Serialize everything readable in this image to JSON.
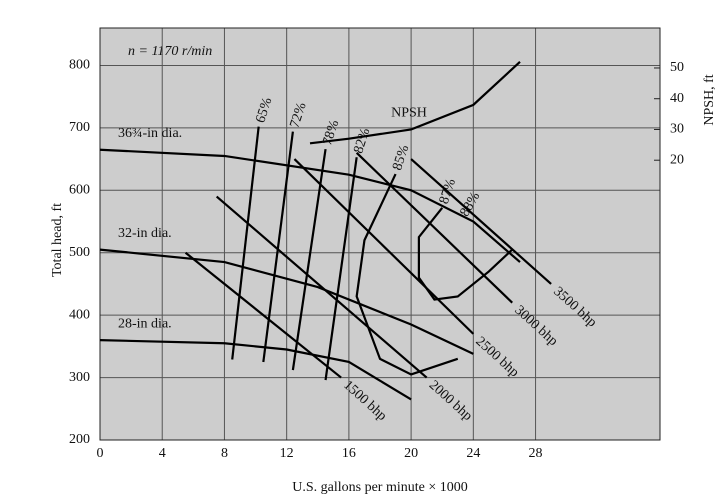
{
  "chart_data": {
    "type": "line",
    "annotation": "n = 1170 r/min",
    "xlabel": "U.S. gallons per minute × 1000",
    "ylabel": "Total head, ft",
    "y2label": "NPSH, ft",
    "xlim": [
      0,
      36
    ],
    "xticks": [
      0,
      4,
      8,
      12,
      16,
      20,
      24,
      28
    ],
    "ylim": [
      200,
      860
    ],
    "yticks": [
      200,
      300,
      400,
      500,
      600,
      700,
      800
    ],
    "y2lim": [
      -71,
      63
    ],
    "y2ticks": [
      20,
      30,
      40,
      50
    ],
    "grid": true,
    "color": "#000000",
    "head_curves": [
      {
        "name": "36¾-in dia.",
        "x": [
          0,
          8,
          16,
          20,
          24,
          27
        ],
        "values": [
          665,
          655,
          625,
          600,
          550,
          485
        ]
      },
      {
        "name": "32-in dia.",
        "x": [
          0,
          8,
          14,
          20,
          24
        ],
        "values": [
          505,
          485,
          445,
          385,
          338
        ]
      },
      {
        "name": "28-in dia.",
        "x": [
          0,
          8,
          12,
          16,
          20
        ],
        "values": [
          360,
          355,
          345,
          325,
          265
        ]
      }
    ],
    "npsh_curve": {
      "name": "NPSH",
      "axis": "y2",
      "x": [
        13.5,
        16,
        20,
        24,
        27
      ],
      "values": [
        25.5,
        27,
        30,
        38,
        52
      ]
    },
    "efficiency_curves": [
      {
        "name": "65%",
        "x": [
          10.2,
          8.5
        ],
        "values": [
          702,
          329
        ]
      },
      {
        "name": "72%",
        "x": [
          12.4,
          10.5
        ],
        "values": [
          694,
          325
        ]
      },
      {
        "name": "78%",
        "x": [
          14.5,
          12.4
        ],
        "values": [
          666,
          312
        ]
      },
      {
        "name": "82%",
        "x": [
          16.5,
          14.5
        ],
        "values": [
          653,
          296
        ]
      },
      {
        "name": "85%",
        "x": [
          19,
          17,
          16.5,
          18,
          20,
          23
        ],
        "values": [
          626,
          520,
          430,
          330,
          305,
          330
        ]
      },
      {
        "name": "87%",
        "x": [
          22,
          20.5,
          20.5,
          21.5,
          23,
          25,
          26.5
        ],
        "values": [
          572,
          525,
          460,
          425,
          430,
          470,
          505
        ]
      }
    ],
    "efficiency_note": "88%",
    "power_lines": [
      {
        "name": "1500 bhp",
        "x": [
          5.5,
          15.5
        ],
        "values": [
          500,
          300
        ]
      },
      {
        "name": "2000 bhp",
        "x": [
          7.5,
          21
        ],
        "values": [
          590,
          300
        ]
      },
      {
        "name": "2500 bhp",
        "x": [
          12.5,
          24
        ],
        "values": [
          650,
          370
        ]
      },
      {
        "name": "3000 bhp",
        "x": [
          16.5,
          26.5
        ],
        "values": [
          660,
          420
        ]
      },
      {
        "name": "3500 bhp",
        "x": [
          20,
          29
        ],
        "values": [
          650,
          450
        ]
      }
    ]
  }
}
